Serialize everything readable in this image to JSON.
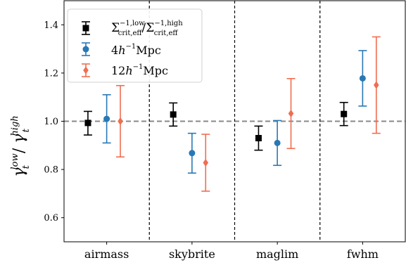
{
  "chart_data": {
    "type": "errorbar",
    "ylabel": {
      "base": "γ",
      "sub1": "t",
      "sup1": "low",
      "sep": " / ",
      "sub2": "t",
      "sup2": "high"
    },
    "categories": [
      "airmass",
      "skybrite",
      "maglim",
      "fwhm"
    ],
    "ylim": [
      0.5,
      1.5
    ],
    "yticks": [
      0.6,
      0.8,
      1.0,
      1.2,
      1.4
    ],
    "ytick_labels": [
      "0.6",
      "0.8",
      "1.0",
      "1.2",
      "1.4"
    ],
    "reference_line": 1.0,
    "group_separators": true,
    "grid": false,
    "legend_placement": "upper-left",
    "series": [
      {
        "label": "Σcrit,eff−1,low/Σcrit,eff−1,high",
        "label_parts": {
          "a_base": "Σ",
          "a_sup": "−1,low",
          "a_sub": "crit,eff",
          "slash": "/",
          "b_base": "Σ",
          "b_sup": "−1,high",
          "b_sub": "crit,eff"
        },
        "color": "#000000",
        "marker": "square",
        "offset": -0.22,
        "values": [
          0.993,
          1.028,
          0.93,
          1.03
        ],
        "err_low": [
          0.05,
          0.048,
          0.05,
          0.048
        ],
        "err_high": [
          0.048,
          0.048,
          0.05,
          0.048
        ]
      },
      {
        "label": "4h−1Mpc",
        "label_parts": {
          "num": "4",
          "h": "h",
          "sup": "−1",
          "unit": "Mpc"
        },
        "color": "#2878b5",
        "marker": "circle",
        "offset": 0.0,
        "values": [
          1.01,
          0.868,
          0.91,
          1.178
        ],
        "err_low": [
          0.1,
          0.083,
          0.093,
          0.115
        ],
        "err_high": [
          0.1,
          0.082,
          0.093,
          0.115
        ]
      },
      {
        "label": "12h−1Mpc",
        "label_parts": {
          "num": "12",
          "h": "h",
          "sup": "−1",
          "unit": "Mpc"
        },
        "color": "#f06d4f",
        "marker": "diamond",
        "offset": 0.16,
        "values": [
          1.0,
          0.828,
          1.032,
          1.15
        ],
        "err_low": [
          0.148,
          0.118,
          0.145,
          0.2
        ],
        "err_high": [
          0.148,
          0.118,
          0.145,
          0.2
        ]
      }
    ]
  }
}
